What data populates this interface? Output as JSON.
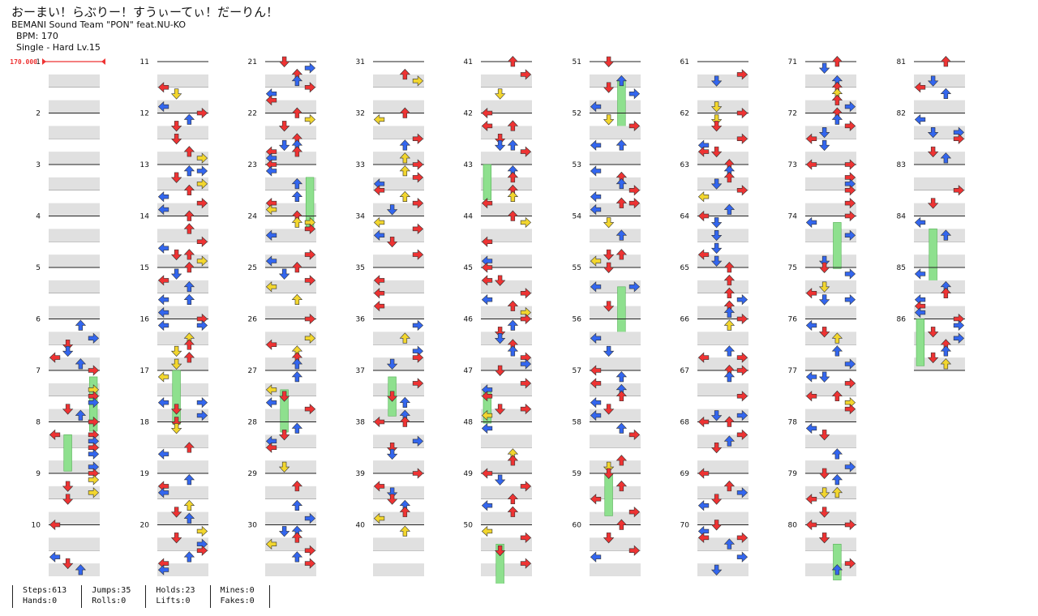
{
  "song": {
    "title": "おーまい！らぶりー！すうぃーてぃ！だーりん！",
    "artist": "BEMANI Sound Team \"PON\" feat.NU-KO",
    "bpm_label": "BPM: 170",
    "chart_label": "Single - Hard  Lv.15"
  },
  "bpm_marker": "170.000",
  "measure_count": 86,
  "measure_numbers": [
    "1",
    "2",
    "3",
    "4",
    "5",
    "6",
    "7",
    "8",
    "9",
    "10",
    "11",
    "12",
    "13",
    "14",
    "15",
    "16",
    "17",
    "18",
    "19",
    "20",
    "21",
    "22",
    "23",
    "24",
    "25",
    "26",
    "27",
    "28",
    "29",
    "30",
    "31",
    "32",
    "33",
    "34",
    "35",
    "36",
    "37",
    "38",
    "39",
    "40",
    "41",
    "42",
    "43",
    "44",
    "45",
    "46",
    "47",
    "48",
    "49",
    "50",
    "51",
    "52",
    "53",
    "54",
    "55",
    "56",
    "57",
    "58",
    "59",
    "60",
    "61",
    "62",
    "63",
    "64",
    "65",
    "66",
    "67",
    "68",
    "69",
    "70",
    "71",
    "72",
    "73",
    "74",
    "75",
    "76",
    "77",
    "78",
    "79",
    "80",
    "81",
    "82",
    "83",
    "84",
    "85",
    "86"
  ],
  "colors": {
    "quarter": "#ee3333",
    "eighth": "#3366ee",
    "sixteenth": "#f2d62e",
    "hold": "#8ee08e",
    "band": "#e0e0e0"
  },
  "stats": {
    "steps": "Steps:613",
    "hands": "Hands:0",
    "jumps": "Jumps:35",
    "rolls": "Rolls:0",
    "holds": "Holds:23",
    "lifts": "Lifts:0",
    "mines": "Mines:0",
    "fakes": "Fakes:0"
  }
}
